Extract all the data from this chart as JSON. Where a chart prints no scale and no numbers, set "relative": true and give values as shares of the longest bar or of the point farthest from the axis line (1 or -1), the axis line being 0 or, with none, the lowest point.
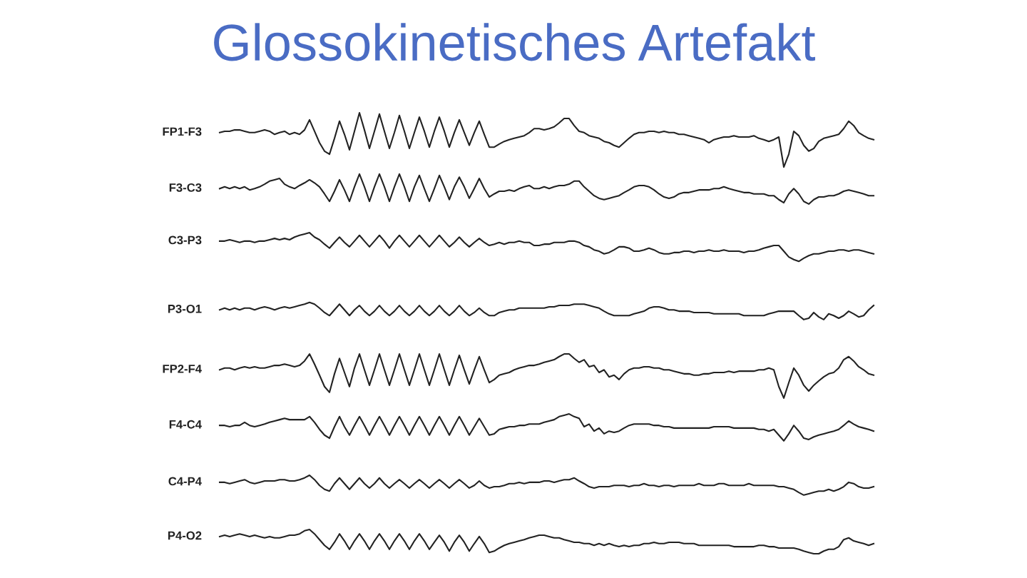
{
  "chart_data": {
    "type": "line",
    "title": "Glossokinetisches Artefakt",
    "relative": true,
    "categories": [
      null,
      null,
      null,
      null,
      null,
      null,
      null,
      null,
      null,
      null,
      null,
      null,
      null,
      null,
      null,
      null,
      null,
      null,
      null,
      null,
      null,
      null,
      null,
      null,
      null,
      null,
      null,
      null,
      null,
      null,
      null,
      null,
      null,
      null,
      null,
      null,
      null,
      null,
      null,
      null,
      null,
      null,
      null,
      null,
      null,
      null,
      null,
      null,
      null,
      null,
      null,
      null,
      null,
      null,
      null,
      null,
      null,
      null,
      null,
      null,
      null,
      null,
      null,
      null,
      null,
      null,
      null,
      null,
      null,
      null,
      null,
      null,
      null,
      null,
      null,
      null,
      null,
      null,
      null,
      null,
      null,
      null,
      null,
      null,
      null,
      null,
      null,
      null,
      null,
      null,
      null,
      null,
      null,
      null,
      null,
      null,
      null,
      null,
      null,
      null,
      null,
      null,
      null,
      null,
      null,
      null,
      null,
      null,
      null,
      null,
      null,
      null,
      null,
      null,
      null,
      null,
      null,
      null,
      null,
      null,
      null,
      null,
      null,
      null,
      null,
      null,
      null,
      null,
      null,
      null,
      null,
      null
    ],
    "series": [
      {
        "name": "FP1-F3",
        "color": "#222222",
        "values": [
          0.955,
          0.958,
          0.958,
          0.961,
          0.961,
          0.958,
          0.955,
          0.955,
          0.958,
          0.961,
          0.958,
          0.951,
          0.955,
          0.958,
          0.951,
          0.955,
          0.951,
          0.961,
          0.984,
          0.958,
          0.932,
          0.913,
          0.906,
          0.942,
          0.981,
          0.951,
          0.916,
          0.958,
          1.0,
          0.961,
          0.919,
          0.958,
          0.997,
          0.958,
          0.919,
          0.955,
          0.994,
          0.958,
          0.919,
          0.955,
          0.99,
          0.958,
          0.922,
          0.958,
          0.99,
          0.958,
          0.922,
          0.955,
          0.984,
          0.955,
          0.926,
          0.955,
          0.981,
          0.951,
          0.922,
          0.922,
          0.929,
          0.935,
          0.939,
          0.942,
          0.945,
          0.948,
          0.955,
          0.964,
          0.964,
          0.961,
          0.964,
          0.968,
          0.977,
          0.987,
          0.987,
          0.971,
          0.958,
          0.955,
          0.948,
          0.945,
          0.942,
          0.935,
          0.932,
          0.926,
          0.922,
          0.932,
          0.942,
          0.951,
          0.955,
          0.955,
          0.958,
          0.958,
          0.955,
          0.958,
          0.955,
          0.955,
          0.951,
          0.951,
          0.948,
          0.945,
          0.942,
          0.939,
          0.932,
          0.939,
          0.942,
          0.945,
          0.945,
          0.948,
          0.945,
          0.945,
          0.945,
          0.948,
          0.942,
          0.939,
          0.935,
          0.939,
          0.945,
          0.877,
          0.906,
          0.958,
          0.948,
          0.926,
          0.913,
          0.919,
          0.935,
          0.942,
          0.945,
          0.948,
          0.951,
          0.964,
          0.981,
          0.971,
          0.955,
          0.948,
          0.942,
          0.939
        ]
      },
      {
        "name": "F3-C3",
        "color": "#222222",
        "values": [
          0.828,
          0.832,
          0.828,
          0.832,
          0.828,
          0.832,
          0.825,
          0.828,
          0.832,
          0.838,
          0.845,
          0.848,
          0.851,
          0.838,
          0.832,
          0.828,
          0.835,
          0.841,
          0.848,
          0.841,
          0.832,
          0.816,
          0.799,
          0.822,
          0.848,
          0.825,
          0.799,
          0.832,
          0.861,
          0.832,
          0.799,
          0.832,
          0.861,
          0.832,
          0.799,
          0.832,
          0.861,
          0.832,
          0.799,
          0.832,
          0.858,
          0.828,
          0.799,
          0.828,
          0.858,
          0.832,
          0.803,
          0.832,
          0.854,
          0.832,
          0.806,
          0.828,
          0.851,
          0.828,
          0.809,
          0.816,
          0.822,
          0.822,
          0.825,
          0.822,
          0.828,
          0.832,
          0.835,
          0.828,
          0.828,
          0.832,
          0.828,
          0.832,
          0.835,
          0.835,
          0.838,
          0.845,
          0.845,
          0.832,
          0.822,
          0.812,
          0.806,
          0.803,
          0.806,
          0.809,
          0.812,
          0.819,
          0.825,
          0.832,
          0.835,
          0.835,
          0.832,
          0.825,
          0.816,
          0.809,
          0.806,
          0.809,
          0.816,
          0.819,
          0.819,
          0.822,
          0.825,
          0.825,
          0.825,
          0.828,
          0.828,
          0.832,
          0.828,
          0.825,
          0.822,
          0.819,
          0.819,
          0.816,
          0.816,
          0.816,
          0.812,
          0.812,
          0.803,
          0.796,
          0.816,
          0.828,
          0.816,
          0.799,
          0.793,
          0.803,
          0.809,
          0.809,
          0.812,
          0.812,
          0.816,
          0.822,
          0.825,
          0.822,
          0.819,
          0.816,
          0.812,
          0.812
        ]
      },
      {
        "name": "C3-P3",
        "color": "#222222",
        "values": [
          0.709,
          0.709,
          0.712,
          0.709,
          0.706,
          0.709,
          0.709,
          0.706,
          0.709,
          0.709,
          0.712,
          0.715,
          0.712,
          0.715,
          0.712,
          0.718,
          0.722,
          0.725,
          0.728,
          0.718,
          0.712,
          0.702,
          0.693,
          0.706,
          0.718,
          0.706,
          0.696,
          0.709,
          0.722,
          0.709,
          0.696,
          0.709,
          0.722,
          0.709,
          0.693,
          0.709,
          0.722,
          0.709,
          0.696,
          0.709,
          0.722,
          0.709,
          0.696,
          0.709,
          0.722,
          0.709,
          0.696,
          0.706,
          0.718,
          0.706,
          0.696,
          0.706,
          0.715,
          0.706,
          0.699,
          0.702,
          0.706,
          0.702,
          0.706,
          0.706,
          0.709,
          0.706,
          0.706,
          0.699,
          0.699,
          0.702,
          0.702,
          0.706,
          0.706,
          0.706,
          0.709,
          0.709,
          0.706,
          0.699,
          0.696,
          0.689,
          0.686,
          0.68,
          0.683,
          0.689,
          0.696,
          0.696,
          0.693,
          0.686,
          0.686,
          0.689,
          0.693,
          0.689,
          0.683,
          0.68,
          0.68,
          0.683,
          0.683,
          0.686,
          0.686,
          0.683,
          0.686,
          0.686,
          0.689,
          0.686,
          0.686,
          0.689,
          0.686,
          0.686,
          0.686,
          0.683,
          0.686,
          0.686,
          0.689,
          0.693,
          0.696,
          0.699,
          0.699,
          0.686,
          0.673,
          0.667,
          0.663,
          0.67,
          0.676,
          0.68,
          0.68,
          0.683,
          0.686,
          0.686,
          0.689,
          0.689,
          0.686,
          0.689,
          0.689,
          0.686,
          0.683,
          0.68
        ]
      },
      {
        "name": "P3-O1",
        "color": "#222222",
        "values": [
          0.553,
          0.557,
          0.553,
          0.557,
          0.553,
          0.557,
          0.557,
          0.553,
          0.557,
          0.56,
          0.557,
          0.553,
          0.557,
          0.56,
          0.557,
          0.56,
          0.563,
          0.566,
          0.57,
          0.566,
          0.557,
          0.547,
          0.54,
          0.553,
          0.566,
          0.553,
          0.54,
          0.553,
          0.563,
          0.55,
          0.54,
          0.55,
          0.563,
          0.55,
          0.54,
          0.55,
          0.563,
          0.55,
          0.54,
          0.55,
          0.563,
          0.55,
          0.54,
          0.55,
          0.563,
          0.55,
          0.54,
          0.55,
          0.563,
          0.55,
          0.54,
          0.547,
          0.557,
          0.547,
          0.54,
          0.54,
          0.547,
          0.55,
          0.553,
          0.553,
          0.557,
          0.557,
          0.557,
          0.557,
          0.557,
          0.557,
          0.56,
          0.56,
          0.563,
          0.563,
          0.563,
          0.566,
          0.566,
          0.566,
          0.563,
          0.56,
          0.557,
          0.55,
          0.544,
          0.54,
          0.54,
          0.54,
          0.54,
          0.544,
          0.547,
          0.55,
          0.557,
          0.56,
          0.56,
          0.557,
          0.553,
          0.553,
          0.55,
          0.55,
          0.55,
          0.547,
          0.547,
          0.547,
          0.547,
          0.544,
          0.544,
          0.544,
          0.544,
          0.544,
          0.544,
          0.54,
          0.54,
          0.54,
          0.54,
          0.54,
          0.544,
          0.547,
          0.55,
          0.55,
          0.55,
          0.55,
          0.54,
          0.531,
          0.534,
          0.547,
          0.537,
          0.531,
          0.544,
          0.54,
          0.534,
          0.54,
          0.55,
          0.544,
          0.537,
          0.54,
          0.553,
          0.563
        ]
      },
      {
        "name": "FP2-F4",
        "color": "#222222",
        "values": [
          0.417,
          0.421,
          0.421,
          0.417,
          0.421,
          0.424,
          0.421,
          0.424,
          0.421,
          0.421,
          0.424,
          0.427,
          0.427,
          0.43,
          0.427,
          0.424,
          0.427,
          0.437,
          0.453,
          0.43,
          0.405,
          0.379,
          0.366,
          0.408,
          0.443,
          0.411,
          0.379,
          0.421,
          0.453,
          0.417,
          0.382,
          0.417,
          0.453,
          0.417,
          0.382,
          0.417,
          0.453,
          0.417,
          0.382,
          0.417,
          0.453,
          0.417,
          0.382,
          0.417,
          0.453,
          0.417,
          0.382,
          0.417,
          0.45,
          0.417,
          0.385,
          0.417,
          0.447,
          0.417,
          0.388,
          0.395,
          0.405,
          0.408,
          0.411,
          0.417,
          0.421,
          0.424,
          0.427,
          0.427,
          0.43,
          0.434,
          0.437,
          0.44,
          0.447,
          0.453,
          0.453,
          0.443,
          0.434,
          0.44,
          0.424,
          0.427,
          0.411,
          0.417,
          0.401,
          0.405,
          0.395,
          0.408,
          0.417,
          0.421,
          0.421,
          0.424,
          0.424,
          0.421,
          0.421,
          0.417,
          0.417,
          0.414,
          0.411,
          0.408,
          0.408,
          0.405,
          0.405,
          0.408,
          0.408,
          0.411,
          0.411,
          0.411,
          0.414,
          0.411,
          0.414,
          0.414,
          0.414,
          0.414,
          0.417,
          0.417,
          0.421,
          0.417,
          0.379,
          0.353,
          0.388,
          0.421,
          0.405,
          0.382,
          0.369,
          0.382,
          0.392,
          0.401,
          0.408,
          0.411,
          0.421,
          0.44,
          0.447,
          0.437,
          0.424,
          0.417,
          0.408,
          0.405
        ]
      },
      {
        "name": "F4-C4",
        "color": "#222222",
        "values": [
          0.291,
          0.291,
          0.288,
          0.291,
          0.291,
          0.298,
          0.291,
          0.288,
          0.291,
          0.294,
          0.298,
          0.301,
          0.304,
          0.307,
          0.304,
          0.304,
          0.304,
          0.304,
          0.311,
          0.298,
          0.282,
          0.269,
          0.262,
          0.288,
          0.311,
          0.288,
          0.269,
          0.291,
          0.311,
          0.291,
          0.269,
          0.291,
          0.311,
          0.291,
          0.269,
          0.291,
          0.311,
          0.291,
          0.269,
          0.291,
          0.311,
          0.291,
          0.269,
          0.291,
          0.311,
          0.291,
          0.269,
          0.291,
          0.311,
          0.291,
          0.269,
          0.288,
          0.307,
          0.288,
          0.269,
          0.272,
          0.282,
          0.285,
          0.288,
          0.288,
          0.291,
          0.291,
          0.294,
          0.294,
          0.294,
          0.298,
          0.301,
          0.304,
          0.311,
          0.314,
          0.317,
          0.311,
          0.307,
          0.288,
          0.294,
          0.278,
          0.285,
          0.272,
          0.278,
          0.275,
          0.278,
          0.285,
          0.291,
          0.294,
          0.294,
          0.294,
          0.294,
          0.291,
          0.291,
          0.288,
          0.288,
          0.285,
          0.285,
          0.285,
          0.285,
          0.285,
          0.285,
          0.285,
          0.285,
          0.288,
          0.288,
          0.288,
          0.288,
          0.285,
          0.285,
          0.285,
          0.285,
          0.285,
          0.282,
          0.282,
          0.278,
          0.282,
          0.269,
          0.256,
          0.272,
          0.291,
          0.278,
          0.262,
          0.259,
          0.265,
          0.269,
          0.272,
          0.275,
          0.278,
          0.282,
          0.291,
          0.301,
          0.294,
          0.288,
          0.285,
          0.282,
          0.278
        ]
      },
      {
        "name": "C4-P4",
        "color": "#222222",
        "values": [
          0.162,
          0.162,
          0.159,
          0.162,
          0.165,
          0.168,
          0.162,
          0.159,
          0.162,
          0.165,
          0.165,
          0.165,
          0.168,
          0.168,
          0.165,
          0.165,
          0.168,
          0.172,
          0.178,
          0.168,
          0.155,
          0.146,
          0.142,
          0.159,
          0.172,
          0.159,
          0.146,
          0.159,
          0.172,
          0.159,
          0.149,
          0.159,
          0.172,
          0.159,
          0.149,
          0.159,
          0.168,
          0.159,
          0.149,
          0.159,
          0.168,
          0.159,
          0.149,
          0.159,
          0.168,
          0.159,
          0.149,
          0.159,
          0.168,
          0.159,
          0.149,
          0.155,
          0.165,
          0.155,
          0.149,
          0.152,
          0.152,
          0.155,
          0.159,
          0.159,
          0.162,
          0.159,
          0.162,
          0.162,
          0.162,
          0.165,
          0.165,
          0.162,
          0.165,
          0.168,
          0.168,
          0.172,
          0.165,
          0.159,
          0.152,
          0.149,
          0.152,
          0.152,
          0.152,
          0.155,
          0.155,
          0.155,
          0.152,
          0.155,
          0.155,
          0.159,
          0.155,
          0.155,
          0.152,
          0.155,
          0.155,
          0.152,
          0.155,
          0.155,
          0.155,
          0.155,
          0.159,
          0.155,
          0.155,
          0.155,
          0.159,
          0.159,
          0.155,
          0.155,
          0.155,
          0.155,
          0.159,
          0.155,
          0.155,
          0.155,
          0.155,
          0.155,
          0.152,
          0.152,
          0.149,
          0.146,
          0.139,
          0.133,
          0.136,
          0.139,
          0.142,
          0.142,
          0.146,
          0.142,
          0.146,
          0.152,
          0.162,
          0.159,
          0.152,
          0.149,
          0.149,
          0.152
        ]
      },
      {
        "name": "P4-O2",
        "color": "#222222",
        "values": [
          0.039,
          0.042,
          0.039,
          0.042,
          0.045,
          0.042,
          0.039,
          0.042,
          0.039,
          0.036,
          0.039,
          0.036,
          0.036,
          0.039,
          0.042,
          0.042,
          0.045,
          0.052,
          0.055,
          0.045,
          0.032,
          0.019,
          0.01,
          0.026,
          0.045,
          0.029,
          0.01,
          0.029,
          0.045,
          0.029,
          0.01,
          0.029,
          0.045,
          0.029,
          0.01,
          0.029,
          0.045,
          0.029,
          0.01,
          0.029,
          0.045,
          0.029,
          0.01,
          0.026,
          0.042,
          0.026,
          0.006,
          0.026,
          0.042,
          0.026,
          0.006,
          0.023,
          0.039,
          0.023,
          0.003,
          0.006,
          0.013,
          0.019,
          0.023,
          0.026,
          0.029,
          0.032,
          0.036,
          0.039,
          0.042,
          0.042,
          0.039,
          0.036,
          0.036,
          0.032,
          0.029,
          0.026,
          0.026,
          0.023,
          0.023,
          0.019,
          0.023,
          0.019,
          0.023,
          0.019,
          0.016,
          0.019,
          0.016,
          0.019,
          0.019,
          0.023,
          0.023,
          0.026,
          0.023,
          0.023,
          0.026,
          0.026,
          0.026,
          0.023,
          0.023,
          0.023,
          0.019,
          0.019,
          0.019,
          0.019,
          0.019,
          0.019,
          0.019,
          0.016,
          0.016,
          0.016,
          0.016,
          0.016,
          0.019,
          0.019,
          0.016,
          0.016,
          0.013,
          0.013,
          0.013,
          0.013,
          0.01,
          0.006,
          0.003,
          0.0,
          0.0,
          0.006,
          0.01,
          0.01,
          0.016,
          0.032,
          0.036,
          0.029,
          0.026,
          0.023,
          0.019,
          0.023
        ]
      }
    ]
  }
}
